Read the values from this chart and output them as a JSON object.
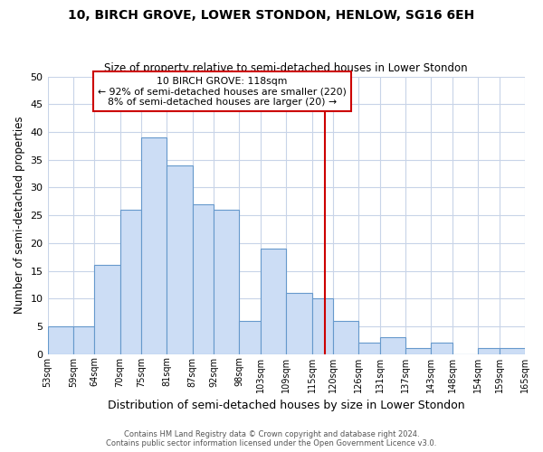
{
  "title": "10, BIRCH GROVE, LOWER STONDON, HENLOW, SG16 6EH",
  "subtitle": "Size of property relative to semi-detached houses in Lower Stondon",
  "xlabel": "Distribution of semi-detached houses by size in Lower Stondon",
  "ylabel": "Number of semi-detached properties",
  "bins": [
    53,
    59,
    64,
    70,
    75,
    81,
    87,
    92,
    98,
    103,
    109,
    115,
    120,
    126,
    131,
    137,
    143,
    148,
    154,
    159,
    165
  ],
  "counts": [
    5,
    5,
    16,
    26,
    39,
    34,
    27,
    26,
    6,
    19,
    11,
    10,
    6,
    2,
    3,
    1,
    2,
    0,
    1,
    1
  ],
  "bar_color": "#ccddf5",
  "bar_edge_color": "#6699cc",
  "vline_x": 118,
  "vline_color": "#cc0000",
  "annotation_title": "10 BIRCH GROVE: 118sqm",
  "annotation_line1": "← 92% of semi-detached houses are smaller (220)",
  "annotation_line2": "8% of semi-detached houses are larger (20) →",
  "annotation_box_color": "#ffffff",
  "annotation_box_edge": "#cc0000",
  "tick_labels": [
    "53sqm",
    "59sqm",
    "64sqm",
    "70sqm",
    "75sqm",
    "81sqm",
    "87sqm",
    "92sqm",
    "98sqm",
    "103sqm",
    "109sqm",
    "115sqm",
    "120sqm",
    "126sqm",
    "131sqm",
    "137sqm",
    "143sqm",
    "148sqm",
    "154sqm",
    "159sqm",
    "165sqm"
  ],
  "ylim": [
    0,
    50
  ],
  "yticks": [
    0,
    5,
    10,
    15,
    20,
    25,
    30,
    35,
    40,
    45,
    50
  ],
  "footer1": "Contains HM Land Registry data © Crown copyright and database right 2024.",
  "footer2": "Contains public sector information licensed under the Open Government Licence v3.0.",
  "background_color": "#ffffff",
  "grid_color": "#c8d4e8"
}
